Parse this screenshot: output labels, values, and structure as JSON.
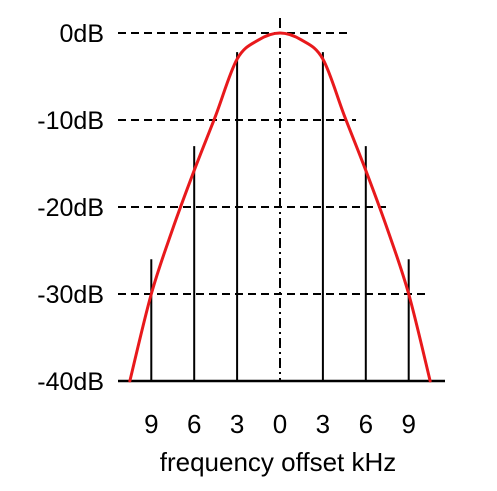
{
  "chart_data": {
    "type": "line",
    "title": "",
    "xlabel": "frequency offset kHz",
    "ylabel": "",
    "x_ticks": [
      {
        "value": -9,
        "label": "9"
      },
      {
        "value": -6,
        "label": "6"
      },
      {
        "value": -3,
        "label": "3"
      },
      {
        "value": 0,
        "label": "0"
      },
      {
        "value": 3,
        "label": "3"
      },
      {
        "value": 6,
        "label": "6"
      },
      {
        "value": 9,
        "label": "9"
      }
    ],
    "y_ticks": [
      {
        "value": 0,
        "label": "0dB"
      },
      {
        "value": -10,
        "label": "-10dB"
      },
      {
        "value": -20,
        "label": "-20dB"
      },
      {
        "value": -30,
        "label": "-30dB"
      },
      {
        "value": -40,
        "label": "-40dB"
      }
    ],
    "xlim": [
      -10.5,
      10.5
    ],
    "ylim": [
      -40,
      0
    ],
    "grid": "dashed-horizontal",
    "series": [
      {
        "color": "#e8191c",
        "x": [
          -10.5,
          -9,
          -7.5,
          -6,
          -4.5,
          -3,
          -1.5,
          0,
          1.5,
          3,
          4.5,
          6,
          7.5,
          9,
          10.5
        ],
        "y": [
          -40,
          -30,
          -22.5,
          -15.8,
          -9.5,
          -3,
          -0.8,
          0,
          -0.8,
          -3,
          -9.5,
          -15.8,
          -22.5,
          -30,
          -40
        ]
      }
    ],
    "spectral_lines": [
      {
        "x": -9,
        "top_db": -26
      },
      {
        "x": -6,
        "top_db": -13
      },
      {
        "x": -3,
        "top_db": -2.2
      },
      {
        "x": 3,
        "top_db": -2.2
      },
      {
        "x": 6,
        "top_db": -13
      },
      {
        "x": 9,
        "top_db": -26
      }
    ],
    "center_line": {
      "x": 0,
      "style": "dash-dot"
    },
    "colors": {
      "curve": "#e8191c",
      "lines": "#000000",
      "grid": "#000000"
    }
  }
}
